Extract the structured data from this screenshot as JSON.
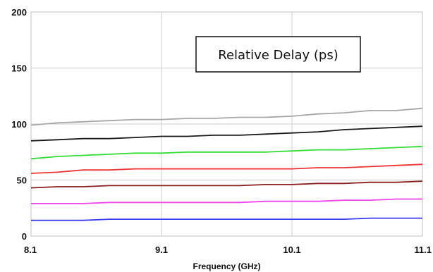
{
  "chart_data": {
    "type": "line",
    "title": "",
    "xlabel": "Frequency (GHz)",
    "ylabel": "",
    "xlim": [
      8.1,
      11.1
    ],
    "ylim": [
      0,
      200
    ],
    "x_ticks": [
      "8.1",
      "9.1",
      "10.1",
      "11.1"
    ],
    "y_ticks": [
      "0",
      "50",
      "100",
      "150",
      "200"
    ],
    "grid": true,
    "annotation": "Relative Delay (ps)",
    "x": [
      8.1,
      8.3,
      8.5,
      8.7,
      8.9,
      9.1,
      9.3,
      9.5,
      9.7,
      9.9,
      10.1,
      10.3,
      10.5,
      10.7,
      10.9,
      11.1
    ],
    "series": [
      {
        "color": "#a6a6a6",
        "values": [
          99,
          101,
          102,
          103,
          104,
          104,
          105,
          105,
          106,
          106,
          107,
          109,
          110,
          112,
          112,
          114
        ]
      },
      {
        "color": "#1a1a1a",
        "values": [
          85,
          86,
          87,
          87,
          88,
          89,
          89,
          90,
          90,
          91,
          92,
          93,
          95,
          96,
          97,
          98
        ]
      },
      {
        "color": "#33dd33",
        "values": [
          69,
          71,
          72,
          73,
          74,
          74,
          75,
          75,
          75,
          75,
          76,
          77,
          77,
          78,
          79,
          80
        ]
      },
      {
        "color": "#ee3333",
        "values": [
          56,
          57,
          59,
          59,
          60,
          60,
          60,
          60,
          60,
          60,
          60,
          61,
          61,
          62,
          63,
          64
        ]
      },
      {
        "color": "#8b1f1f",
        "values": [
          43,
          44,
          44,
          45,
          45,
          45,
          45,
          45,
          45,
          46,
          46,
          47,
          47,
          48,
          48,
          49
        ]
      },
      {
        "color": "#ee44ee",
        "values": [
          29,
          29,
          29,
          30,
          30,
          30,
          30,
          30,
          30,
          31,
          31,
          31,
          32,
          32,
          33,
          33
        ]
      },
      {
        "color": "#3a3aee",
        "values": [
          14,
          14,
          14,
          15,
          15,
          15,
          15,
          15,
          15,
          15,
          15,
          15,
          15,
          16,
          16,
          16
        ]
      }
    ]
  }
}
